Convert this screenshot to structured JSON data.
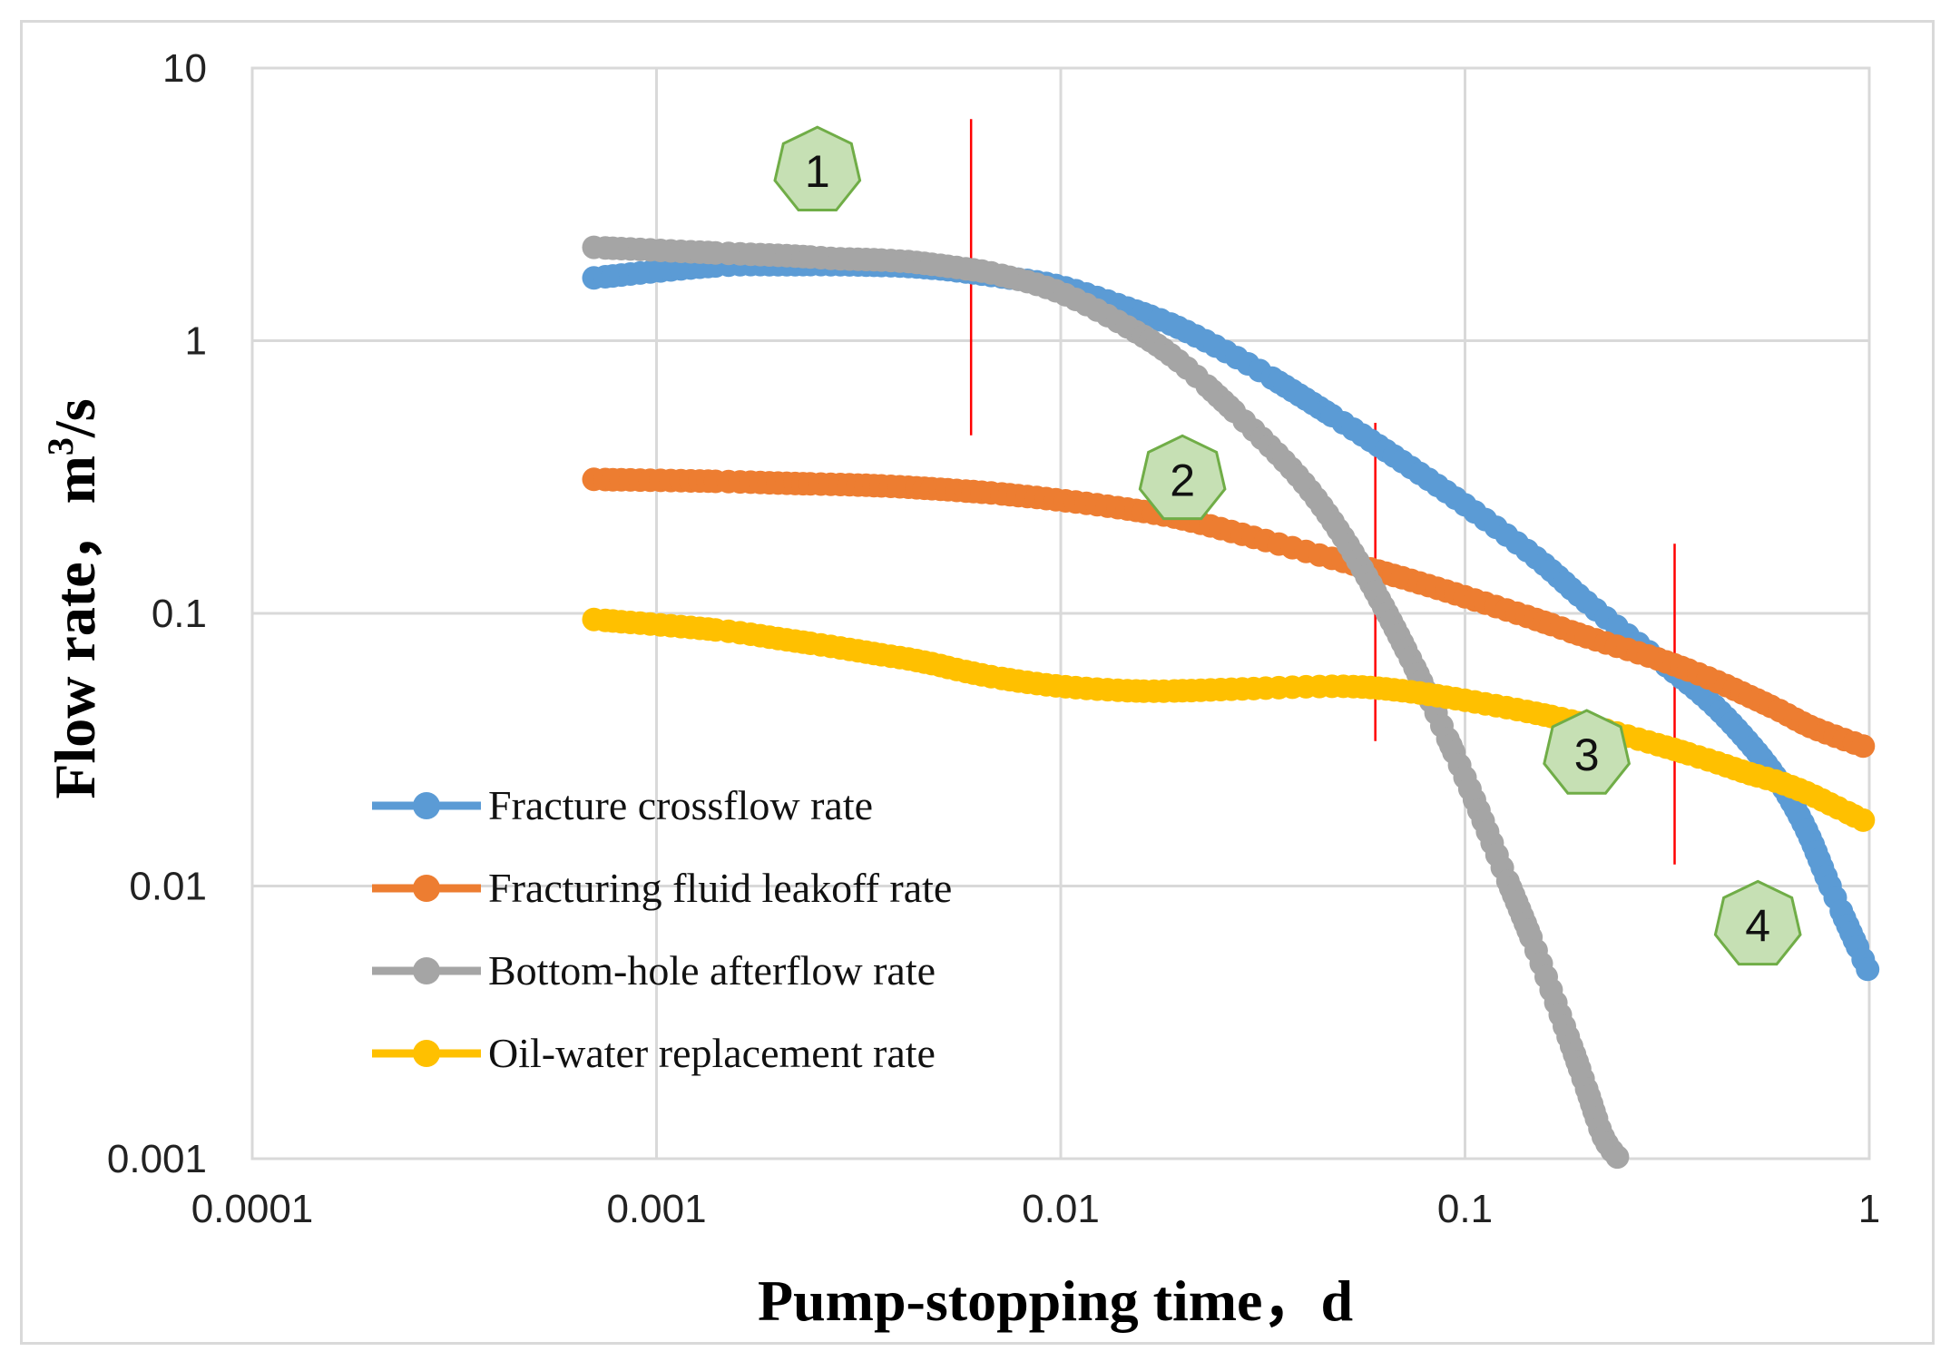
{
  "chart_data": {
    "type": "line",
    "xscale": "log",
    "yscale": "log",
    "xlabel": "Pump-stopping time，d",
    "ylabel_main": "Flow rate，m",
    "ylabel_sup": "3",
    "ylabel_tail": "/s",
    "xlim": [
      0.0001,
      1
    ],
    "ylim": [
      0.001,
      10
    ],
    "x_ticks": [
      "0.0001",
      "0.001",
      "0.01",
      "0.1",
      "1"
    ],
    "y_ticks": [
      "0.001",
      "0.01",
      "0.1",
      "1",
      "10"
    ],
    "grid": true,
    "legend_position": "lower-left",
    "series": [
      {
        "name": "Fracture crossflow rate",
        "color": "#5B9BD5",
        "x": [
          0.0007,
          0.0014,
          0.0021,
          0.0028,
          0.0035,
          0.0042,
          0.0049,
          0.0056,
          0.007,
          0.01,
          0.015,
          0.02,
          0.03,
          0.05,
          0.07,
          0.1,
          0.15,
          0.2,
          0.3,
          0.4,
          0.5,
          0.6,
          0.7,
          0.8,
          1.0
        ],
        "y": [
          1.7,
          1.88,
          1.9,
          1.9,
          1.89,
          1.87,
          1.84,
          1.8,
          1.72,
          1.58,
          1.3,
          1.1,
          0.8,
          0.5,
          0.36,
          0.25,
          0.16,
          0.11,
          0.068,
          0.048,
          0.034,
          0.024,
          0.016,
          0.01,
          0.0048
        ]
      },
      {
        "name": "Fracturing fluid leakoff rate",
        "color": "#ED7D31",
        "x": [
          0.0007,
          0.0014,
          0.0021,
          0.0028,
          0.0035,
          0.0042,
          0.0049,
          0.0056,
          0.007,
          0.01,
          0.015,
          0.02,
          0.03,
          0.05,
          0.07,
          0.1,
          0.15,
          0.2,
          0.3,
          0.4,
          0.5,
          0.6,
          0.7,
          0.8,
          1.0
        ],
        "y": [
          0.31,
          0.305,
          0.3,
          0.297,
          0.294,
          0.29,
          0.286,
          0.282,
          0.275,
          0.26,
          0.24,
          0.222,
          0.19,
          0.155,
          0.135,
          0.115,
          0.095,
          0.082,
          0.068,
          0.058,
          0.05,
          0.044,
          0.039,
          0.036,
          0.032
        ]
      },
      {
        "name": "Bottom-hole afterflow rate",
        "color": "#A5A5A5",
        "x": [
          0.0007,
          0.0014,
          0.0021,
          0.0028,
          0.0035,
          0.0042,
          0.0049,
          0.0056,
          0.007,
          0.01,
          0.015,
          0.02,
          0.03,
          0.04,
          0.05,
          0.06,
          0.07,
          0.08,
          0.1,
          0.12,
          0.15,
          0.18,
          0.2,
          0.22,
          0.24
        ],
        "y": [
          2.2,
          2.1,
          2.05,
          2.0,
          1.98,
          1.95,
          1.9,
          1.85,
          1.75,
          1.5,
          1.1,
          0.82,
          0.47,
          0.3,
          0.19,
          0.12,
          0.078,
          0.052,
          0.025,
          0.013,
          0.0058,
          0.0028,
          0.0018,
          0.0012,
          0.001
        ]
      },
      {
        "name": "Oil-water replacement rate",
        "color": "#FFC000",
        "x": [
          0.0007,
          0.0014,
          0.0021,
          0.0028,
          0.0035,
          0.0042,
          0.0049,
          0.0056,
          0.007,
          0.01,
          0.015,
          0.02,
          0.03,
          0.05,
          0.07,
          0.1,
          0.15,
          0.2,
          0.3,
          0.4,
          0.5,
          0.6,
          0.7,
          0.8,
          1.0
        ],
        "y": [
          0.095,
          0.087,
          0.08,
          0.075,
          0.071,
          0.068,
          0.065,
          0.062,
          0.058,
          0.054,
          0.052,
          0.052,
          0.053,
          0.054,
          0.052,
          0.048,
          0.043,
          0.039,
          0.033,
          0.029,
          0.026,
          0.024,
          0.022,
          0.02,
          0.017
        ]
      }
    ],
    "stage_dividers": [
      {
        "x": 0.006,
        "y_low": 0.45,
        "y_high": 6.5
      },
      {
        "x": 0.06,
        "y_low": 0.034,
        "y_high": 0.5
      },
      {
        "x": 0.33,
        "y_low": 0.012,
        "y_high": 0.18
      }
    ],
    "stage_markers": [
      {
        "label": "1",
        "x": 0.0025,
        "y": 4.2
      },
      {
        "label": "2",
        "x": 0.02,
        "y": 0.31
      },
      {
        "label": "3",
        "x": 0.2,
        "y": 0.0305
      },
      {
        "label": "4",
        "x": 0.53,
        "y": 0.0072
      }
    ],
    "colors": {
      "divider": "#FF0000",
      "marker_fill": "#C6E0B4",
      "marker_stroke": "#70AD47",
      "grid": "#D9D9D9"
    }
  }
}
